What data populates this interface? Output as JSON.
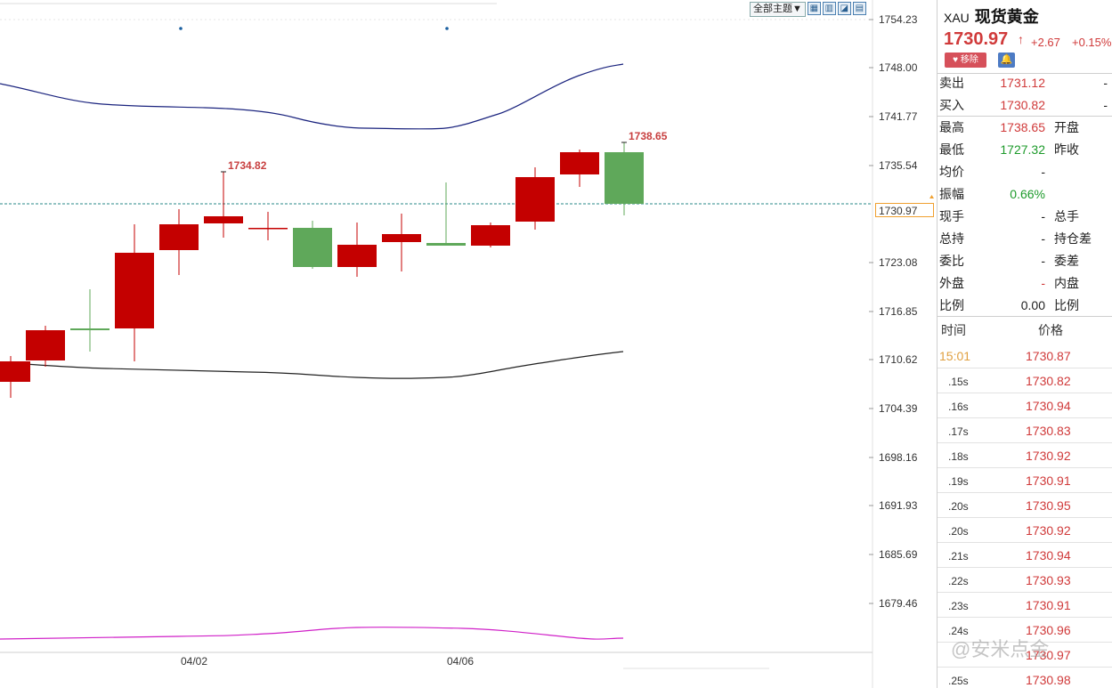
{
  "toolbar": {
    "theme_select": "全部主题▼",
    "icons": [
      "grid-icon",
      "layout-icon",
      "line-chart-icon",
      "bar-icon"
    ]
  },
  "chart_data": {
    "type": "candlestick",
    "y_axis_ticks": [
      "1754.23",
      "1748.00",
      "1741.77",
      "1735.54",
      "1723.08",
      "1716.85",
      "1710.62",
      "1704.39",
      "1698.16",
      "1691.93",
      "1685.69",
      "1679.46"
    ],
    "x_tick_labels": [
      "04/02",
      "04/06"
    ],
    "current_price_label": "1730.97",
    "annotations": [
      "1734.82",
      "1738.65"
    ],
    "colors": {
      "up": "#c40000",
      "down": "#5fa85a",
      "band": "#1a237e",
      "lower": "#222222",
      "indicator": "#d020c8"
    }
  },
  "panel": {
    "code": "XAU",
    "name": "现货黄金",
    "price": "1730.97",
    "arrow": "↑",
    "change": "+2.67",
    "change_pct": "+0.15%",
    "remove_label": "移除",
    "sell_label": "卖出",
    "sell_value": "1731.12",
    "sell_dash": "-",
    "buy_label": "买入",
    "buy_value": "1730.82",
    "buy_dash": "-",
    "stats": [
      {
        "k1": "最高",
        "v1": "1738.65",
        "c1": "red",
        "k2": "开盘",
        "v2": ""
      },
      {
        "k1": "最低",
        "v1": "1727.32",
        "c1": "green",
        "k2": "昨收",
        "v2": ""
      },
      {
        "k1": "均价",
        "v1": "-",
        "c1": "black",
        "k2": "",
        "v2": ""
      },
      {
        "k1": "振幅",
        "v1": "0.66%",
        "c1": "green",
        "k2": "",
        "v2": ""
      },
      {
        "k1": "现手",
        "v1": "-",
        "c1": "black",
        "k2": "总手",
        "v2": ""
      },
      {
        "k1": "总持",
        "v1": "-",
        "c1": "black",
        "k2": "持仓差",
        "v2": ""
      },
      {
        "k1": "委比",
        "v1": "-",
        "c1": "black",
        "k2": "委差",
        "v2": ""
      },
      {
        "k1": "外盘",
        "v1": "-",
        "c1": "red",
        "k2": "内盘",
        "v2": ""
      },
      {
        "k1": "比例",
        "v1": "0.00",
        "c1": "black",
        "k2": "比例",
        "v2": ""
      }
    ],
    "tick_header_time": "时间",
    "tick_header_price": "价格",
    "ticks": [
      {
        "time": "15:01",
        "price": "1730.87"
      },
      {
        "time": ".15s",
        "price": "1730.82"
      },
      {
        "time": ".16s",
        "price": "1730.94"
      },
      {
        "time": ".17s",
        "price": "1730.83"
      },
      {
        "time": ".18s",
        "price": "1730.92"
      },
      {
        "time": ".19s",
        "price": "1730.91"
      },
      {
        "time": ".20s",
        "price": "1730.95"
      },
      {
        "time": ".20s",
        "price": "1730.92"
      },
      {
        "time": ".21s",
        "price": "1730.94"
      },
      {
        "time": ".22s",
        "price": "1730.93"
      },
      {
        "time": ".23s",
        "price": "1730.91"
      },
      {
        "time": ".24s",
        "price": "1730.96"
      },
      {
        "time": "",
        "price": "1730.97"
      },
      {
        "time": ".25s",
        "price": "1730.98"
      }
    ]
  },
  "watermark": "@安米点金"
}
